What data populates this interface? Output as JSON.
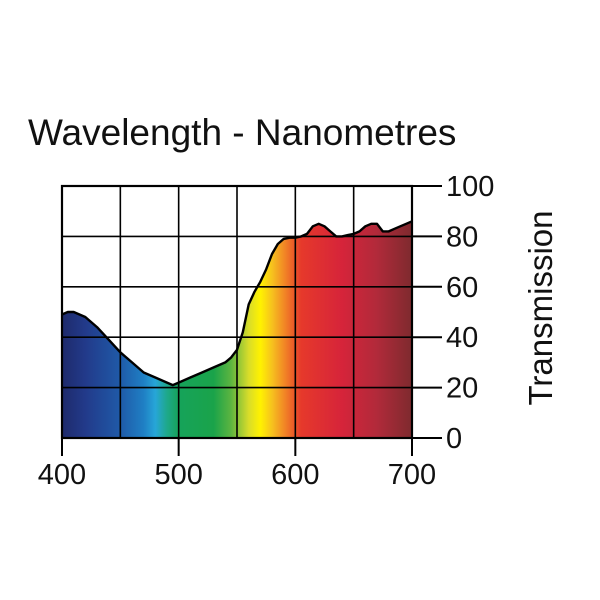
{
  "chart_data": {
    "type": "area",
    "title": "Wavelength - Nanometres",
    "xlabel": "",
    "ylabel": "Transmission",
    "xlim": [
      400,
      700
    ],
    "ylim": [
      0,
      100
    ],
    "x_ticks": [
      400,
      500,
      600,
      700
    ],
    "x_tick_labels": [
      "400",
      "500",
      "600",
      "700"
    ],
    "y_ticks": [
      0,
      20,
      40,
      60,
      80,
      100
    ],
    "y_tick_labels": [
      "0",
      "20",
      "40",
      "60",
      "80",
      "100"
    ],
    "x_gridlines": [
      450,
      500,
      550,
      600,
      650
    ],
    "y_gridlines": [
      20,
      40,
      60,
      80
    ],
    "y_axis_side": "right",
    "fill": "visible-spectrum gradient",
    "series": [
      {
        "name": "Transmission",
        "x": [
          400,
          405,
          410,
          420,
          430,
          440,
          450,
          460,
          470,
          480,
          490,
          495,
          500,
          510,
          520,
          530,
          540,
          545,
          550,
          555,
          560,
          565,
          570,
          575,
          580,
          585,
          590,
          595,
          600,
          605,
          610,
          615,
          620,
          625,
          630,
          635,
          640,
          645,
          650,
          655,
          660,
          665,
          670,
          675,
          680,
          685,
          690,
          695,
          700
        ],
        "y": [
          49,
          50,
          50,
          48,
          44,
          39,
          34,
          30,
          26,
          24,
          22,
          21,
          22,
          24,
          26,
          28,
          30,
          32,
          35,
          42,
          53,
          58,
          62,
          67,
          73,
          77,
          79,
          79.5,
          79.5,
          80,
          81,
          84,
          85,
          84,
          82,
          80,
          80,
          80.5,
          81,
          82,
          84,
          85,
          85,
          82,
          82,
          83,
          84,
          85,
          86
        ]
      }
    ],
    "spectrum_stops": [
      {
        "nm": 400,
        "color": "#1e2a6b"
      },
      {
        "nm": 420,
        "color": "#223a8a"
      },
      {
        "nm": 450,
        "color": "#1f5aa8"
      },
      {
        "nm": 470,
        "color": "#1f7fc4"
      },
      {
        "nm": 480,
        "color": "#27a6d8"
      },
      {
        "nm": 490,
        "color": "#1ea88a"
      },
      {
        "nm": 500,
        "color": "#16a35a"
      },
      {
        "nm": 530,
        "color": "#1aa34a"
      },
      {
        "nm": 545,
        "color": "#5db540"
      },
      {
        "nm": 560,
        "color": "#d8dc2a"
      },
      {
        "nm": 570,
        "color": "#fff200"
      },
      {
        "nm": 580,
        "color": "#f6c21e"
      },
      {
        "nm": 590,
        "color": "#f28a25"
      },
      {
        "nm": 605,
        "color": "#e6392b"
      },
      {
        "nm": 640,
        "color": "#d6243a"
      },
      {
        "nm": 670,
        "color": "#b12a3a"
      },
      {
        "nm": 700,
        "color": "#7e2a2e"
      }
    ]
  }
}
